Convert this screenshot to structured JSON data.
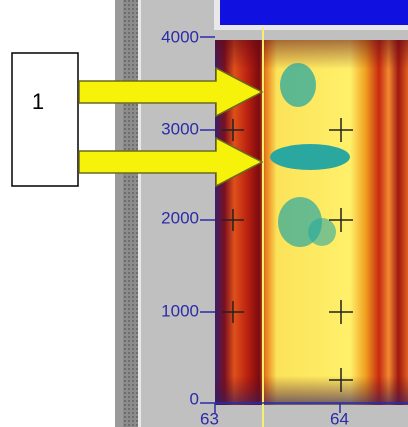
{
  "annotation": {
    "label": "1"
  },
  "spectrogram": {
    "y_axis_labels": [
      "4000",
      "3000",
      "2000",
      "1000",
      "0"
    ],
    "x_axis_labels": [
      "63",
      "64"
    ]
  }
}
